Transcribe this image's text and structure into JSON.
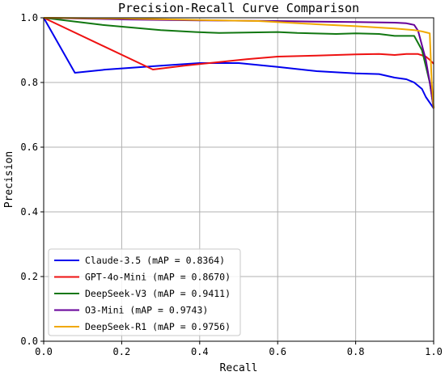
{
  "chart_data": {
    "type": "line",
    "title": "Precision-Recall Curve Comparison",
    "xlabel": "Recall",
    "ylabel": "Precision",
    "xlim": [
      0.0,
      1.0
    ],
    "ylim": [
      0.0,
      1.0
    ],
    "xticks": [
      "0.0",
      "0.2",
      "0.4",
      "0.6",
      "0.8",
      "1.0"
    ],
    "yticks": [
      "0.0",
      "0.2",
      "0.4",
      "0.6",
      "0.8",
      "1.0"
    ],
    "grid": true,
    "legend_position": "lower-left",
    "series": [
      {
        "name": "Claude-3.5 (mAP = 0.8364)",
        "color": "#0000ee",
        "points": [
          [
            0.0,
            1.0
          ],
          [
            0.08,
            0.83
          ],
          [
            0.16,
            0.84
          ],
          [
            0.3,
            0.852
          ],
          [
            0.4,
            0.86
          ],
          [
            0.5,
            0.86
          ],
          [
            0.6,
            0.848
          ],
          [
            0.7,
            0.835
          ],
          [
            0.8,
            0.828
          ],
          [
            0.86,
            0.826
          ],
          [
            0.9,
            0.815
          ],
          [
            0.93,
            0.81
          ],
          [
            0.95,
            0.8
          ],
          [
            0.97,
            0.78
          ],
          [
            0.98,
            0.755
          ],
          [
            1.0,
            0.72
          ]
        ]
      },
      {
        "name": "GPT-4o-Mini (mAP = 0.8670)",
        "color": "#ee1111",
        "points": [
          [
            0.0,
            1.0
          ],
          [
            0.28,
            0.84
          ],
          [
            0.36,
            0.852
          ],
          [
            0.44,
            0.862
          ],
          [
            0.52,
            0.872
          ],
          [
            0.6,
            0.88
          ],
          [
            0.7,
            0.883
          ],
          [
            0.8,
            0.887
          ],
          [
            0.86,
            0.888
          ],
          [
            0.9,
            0.885
          ],
          [
            0.93,
            0.888
          ],
          [
            0.96,
            0.888
          ],
          [
            0.98,
            0.88
          ],
          [
            0.99,
            0.87
          ],
          [
            1.0,
            0.858
          ]
        ]
      },
      {
        "name": "DeepSeek-V3 (mAP = 0.9411)",
        "color": "#117711",
        "points": [
          [
            0.0,
            1.0
          ],
          [
            0.15,
            0.978
          ],
          [
            0.3,
            0.962
          ],
          [
            0.39,
            0.956
          ],
          [
            0.45,
            0.953
          ],
          [
            0.6,
            0.956
          ],
          [
            0.65,
            0.953
          ],
          [
            0.75,
            0.95
          ],
          [
            0.8,
            0.952
          ],
          [
            0.86,
            0.95
          ],
          [
            0.9,
            0.944
          ],
          [
            0.95,
            0.944
          ],
          [
            0.97,
            0.9
          ],
          [
            0.99,
            0.8
          ],
          [
            1.0,
            0.72
          ]
        ]
      },
      {
        "name": "O3-Mini (mAP = 0.9743)",
        "color": "#660099",
        "points": [
          [
            0.0,
            1.0
          ],
          [
            0.2,
            0.995
          ],
          [
            0.4,
            0.992
          ],
          [
            0.6,
            0.99
          ],
          [
            0.7,
            0.988
          ],
          [
            0.8,
            0.987
          ],
          [
            0.9,
            0.985
          ],
          [
            0.93,
            0.983
          ],
          [
            0.95,
            0.978
          ],
          [
            0.96,
            0.96
          ],
          [
            0.98,
            0.87
          ],
          [
            0.99,
            0.8
          ],
          [
            1.0,
            0.72
          ]
        ]
      },
      {
        "name": "DeepSeek-R1 (mAP = 0.9756)",
        "color": "#f0a800",
        "points": [
          [
            0.0,
            1.0
          ],
          [
            0.2,
            0.998
          ],
          [
            0.4,
            0.993
          ],
          [
            0.55,
            0.99
          ],
          [
            0.7,
            0.98
          ],
          [
            0.8,
            0.974
          ],
          [
            0.9,
            0.967
          ],
          [
            0.95,
            0.962
          ],
          [
            0.97,
            0.958
          ],
          [
            0.98,
            0.955
          ],
          [
            0.99,
            0.952
          ],
          [
            0.995,
            0.8
          ],
          [
            1.0,
            0.72
          ]
        ]
      }
    ]
  }
}
